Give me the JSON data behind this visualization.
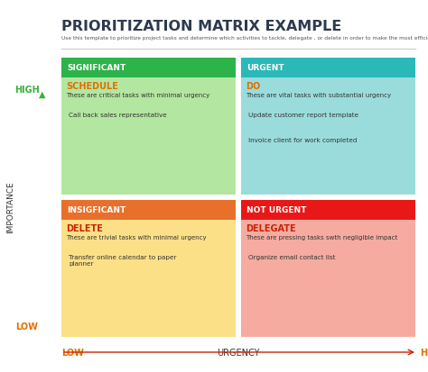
{
  "title": "PRIORITIZATION MATRIX EXAMPLE",
  "subtitle": "Use this template to prioritize project tasks and determine which activities to tackle, delegate , or delete in order to make the most efficient use of your time.",
  "bg_color": "#ffffff",
  "title_color": "#2e3a4e",
  "subtitle_color": "#555555",
  "quadrants": [
    {
      "label": "SIGNIFICANT",
      "label_bg": "#2db34a",
      "label_text_color": "#ffffff",
      "body_bg": "#b3e6a0",
      "action": "SCHEDULE",
      "action_color": "#e07000",
      "desc": "These are critical tasks with minimal urgency",
      "items": [
        "Call back sales representative"
      ],
      "col": 0,
      "row": 1
    },
    {
      "label": "URGENT",
      "label_bg": "#2ab8b8",
      "label_text_color": "#ffffff",
      "body_bg": "#9adcdc",
      "action": "DO",
      "action_color": "#e07000",
      "desc": "These are vital tasks with substantial urgency",
      "items": [
        "Update customer report template",
        "Invoice client for work completed"
      ],
      "col": 1,
      "row": 1
    },
    {
      "label": "INSIGFICANT",
      "label_bg": "#e8702a",
      "label_text_color": "#ffffff",
      "body_bg": "#fce088",
      "action": "DELETE",
      "action_color": "#cc2200",
      "desc": "These are trivial tasks with minimal urgency",
      "items": [
        "Transfer online calendar to paper\nplanner"
      ],
      "col": 0,
      "row": 0
    },
    {
      "label": "NOT URGENT",
      "label_bg": "#e81818",
      "label_text_color": "#ffffff",
      "body_bg": "#f5aba0",
      "action": "DELEGATE",
      "action_color": "#cc2200",
      "desc": "These are pressing tasks swth negligible impact",
      "items": [
        "Organize email contact list"
      ],
      "col": 1,
      "row": 0
    }
  ],
  "high_label": "HIGH",
  "low_label": "LOW",
  "importance_label": "IMPORTANCE",
  "urgency_label": "URGENCY",
  "x_low_label": "LOW",
  "x_high_label": "HIGH",
  "green_color": "#3ab03a",
  "orange_color": "#e07000",
  "dark_color": "#333333",
  "mid_color": "#666666"
}
